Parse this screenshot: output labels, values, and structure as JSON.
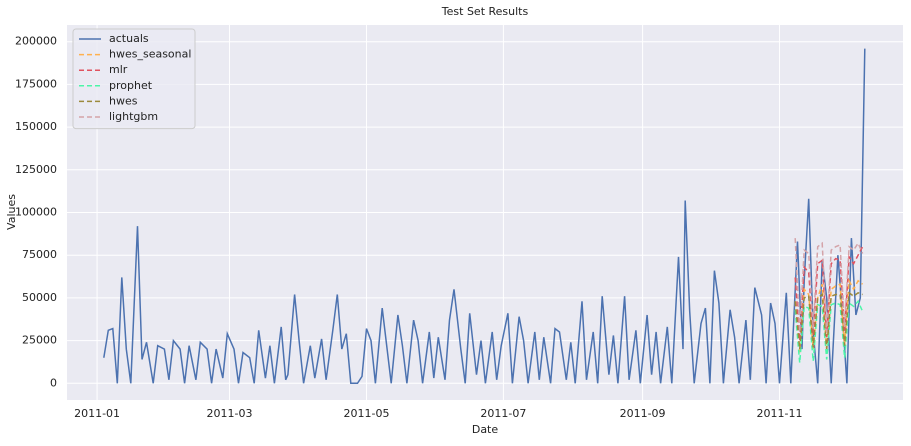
{
  "chart_data": {
    "type": "line",
    "title": "Test Set Results",
    "x_label": "Date",
    "y_label": "Values",
    "xlim": [
      -12.4,
      360
    ],
    "ylim": [
      -9800,
      209800
    ],
    "xticks": [
      {
        "value": 1,
        "label": "2011-01"
      },
      {
        "value": 60,
        "label": "2011-03"
      },
      {
        "value": 121,
        "label": "2011-05"
      },
      {
        "value": 182,
        "label": "2011-07"
      },
      {
        "value": 244,
        "label": "2011-09"
      },
      {
        "value": 305,
        "label": "2011-11"
      }
    ],
    "yticks": [
      0,
      25000,
      50000,
      75000,
      100000,
      125000,
      150000,
      175000,
      200000
    ],
    "grid": true,
    "legend": "upper left",
    "series": [
      {
        "name": "actuals",
        "color": "#4c72b0",
        "linestyle": "solid",
        "x": [
          4,
          6,
          8,
          10,
          12,
          14,
          16,
          19,
          21,
          23,
          26,
          28,
          31,
          33,
          35,
          38,
          40,
          42,
          45,
          47,
          50,
          52,
          54,
          57,
          59,
          62,
          64,
          66,
          69,
          71,
          73,
          76,
          78,
          80,
          83,
          85,
          86,
          89,
          91,
          93,
          96,
          98,
          101,
          103,
          106,
          108,
          110,
          112,
          114,
          117,
          119,
          121,
          123,
          125,
          128,
          130,
          132,
          135,
          137,
          139,
          142,
          144,
          146,
          149,
          151,
          153,
          156,
          158,
          160,
          163,
          165,
          167,
          170,
          172,
          174,
          177,
          179,
          181,
          184,
          186,
          189,
          191,
          193,
          196,
          198,
          200,
          203,
          205,
          207,
          210,
          212,
          214,
          217,
          219,
          222,
          224,
          226,
          229,
          231,
          233,
          236,
          238,
          241,
          243,
          246,
          248,
          250,
          252,
          255,
          257,
          260,
          262,
          263,
          265,
          267,
          270,
          272,
          274,
          276,
          278,
          280,
          283,
          285,
          287,
          290,
          292,
          294,
          297,
          299,
          301,
          303,
          305,
          308,
          310,
          313,
          315,
          316,
          318,
          320,
          322,
          324,
          326,
          328,
          331,
          333,
          335,
          337,
          339,
          341,
          343
        ],
        "values": [
          15000,
          31000,
          32000,
          0,
          62000,
          20000,
          0,
          92000,
          14000,
          24000,
          0,
          22000,
          20000,
          2000,
          25000,
          20000,
          0,
          22000,
          2000,
          24000,
          20000,
          0,
          20000,
          3000,
          29000,
          20000,
          0,
          18000,
          15000,
          0,
          31000,
          3000,
          22000,
          0,
          33000,
          2000,
          5000,
          52000,
          25000,
          0,
          22000,
          3000,
          26000,
          2000,
          31000,
          52000,
          20000,
          29000,
          0,
          0,
          4000,
          32000,
          25000,
          0,
          44000,
          22000,
          0,
          40000,
          22000,
          0,
          37000,
          25000,
          0,
          30000,
          3000,
          27000,
          2000,
          37000,
          55000,
          20000,
          0,
          41000,
          5000,
          25000,
          0,
          30000,
          2000,
          22000,
          41000,
          0,
          39000,
          25000,
          0,
          30000,
          2000,
          27000,
          0,
          32000,
          30000,
          2000,
          24000,
          0,
          48000,
          2000,
          30000,
          0,
          51000,
          5000,
          28000,
          0,
          51000,
          2000,
          31000,
          0,
          40000,
          5000,
          30000,
          0,
          33000,
          0,
          74000,
          20000,
          107000,
          42000,
          0,
          35000,
          44000,
          0,
          66000,
          47000,
          0,
          43000,
          27000,
          0,
          37000,
          2000,
          56000,
          40000,
          0,
          47000,
          35000,
          0,
          53000,
          0,
          83000,
          20000,
          60000,
          108000,
          30000,
          0,
          72000,
          50000,
          0,
          75000,
          40000,
          0,
          85000,
          40000,
          50000,
          196000
        ]
      },
      {
        "name": "hwes_seasonal",
        "color": "#ffb14e",
        "linestyle": "dashed",
        "x": [
          312,
          314,
          316,
          318,
          320,
          322,
          324,
          326,
          328,
          330,
          332,
          334,
          336,
          338,
          340,
          342
        ],
        "values": [
          48000,
          18000,
          55000,
          52000,
          20000,
          50000,
          58000,
          20000,
          55000,
          57000,
          58000,
          22000,
          60000,
          55000,
          60000,
          58000
        ]
      },
      {
        "name": "mlr",
        "color": "#e0525f",
        "linestyle": "dashed",
        "x": [
          312,
          314,
          316,
          318,
          320,
          322,
          324,
          326,
          328,
          330,
          332,
          334,
          336,
          338,
          340,
          342
        ],
        "values": [
          62000,
          25000,
          68000,
          65000,
          28000,
          70000,
          72000,
          27000,
          70000,
          73000,
          72000,
          30000,
          74000,
          70000,
          75000,
          80000
        ]
      },
      {
        "name": "prophet",
        "color": "#4cf5a8",
        "linestyle": "dashed",
        "x": [
          312,
          314,
          316,
          318,
          320,
          322,
          324,
          326,
          328,
          330,
          332,
          334,
          336,
          338,
          340,
          342
        ],
        "values": [
          43000,
          12000,
          45000,
          44000,
          13000,
          46000,
          45000,
          14000,
          46000,
          47000,
          46000,
          15000,
          47000,
          45000,
          48000,
          42000
        ]
      },
      {
        "name": "hwes",
        "color": "#9c8a3c",
        "linestyle": "dashed",
        "x": [
          312,
          314,
          316,
          318,
          320,
          322,
          324,
          326,
          328,
          330,
          332,
          334,
          336,
          338,
          340,
          342
        ],
        "values": [
          48000,
          20000,
          50000,
          51000,
          21000,
          50000,
          52000,
          20000,
          51000,
          52000,
          52000,
          22000,
          53000,
          51000,
          53000,
          52000
        ]
      },
      {
        "name": "lightgbm",
        "color": "#d4a3a8",
        "linestyle": "dashed",
        "x": [
          312,
          314,
          316,
          318,
          320,
          322,
          324,
          326,
          328,
          330,
          332,
          334,
          336,
          338,
          340,
          342
        ],
        "values": [
          85000,
          30000,
          78000,
          76000,
          32000,
          80000,
          82000,
          30000,
          78000,
          80000,
          81000,
          33000,
          80000,
          78000,
          82000,
          76000
        ]
      }
    ]
  }
}
